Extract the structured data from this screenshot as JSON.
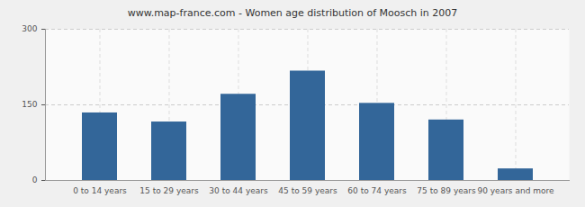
{
  "chart_data": {
    "type": "bar",
    "title": "www.map-france.com - Women age distribution of Moosch in 2007",
    "categories": [
      "0 to 14 years",
      "15 to 29 years",
      "30 to 44 years",
      "45 to 59 years",
      "60 to 74 years",
      "75 to 89 years",
      "90 years and more"
    ],
    "values": [
      134,
      116,
      171,
      217,
      153,
      120,
      23
    ],
    "color": "#336699",
    "ylim": [
      0,
      300
    ],
    "yticks": [
      0,
      150,
      300
    ],
    "grid": true
  }
}
